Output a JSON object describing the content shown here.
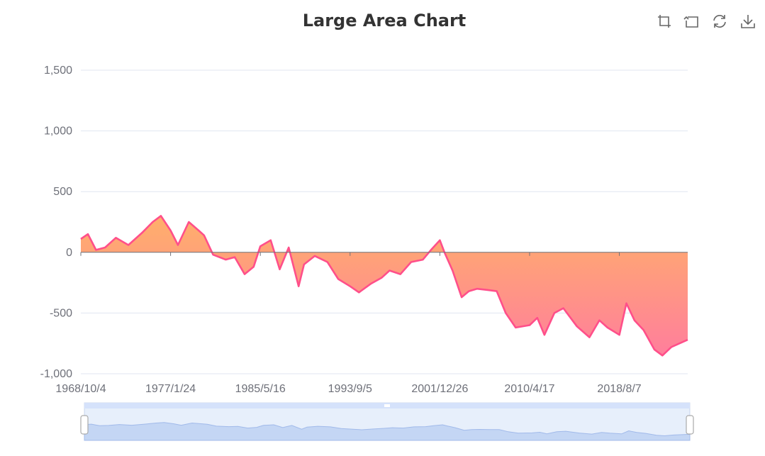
{
  "chart_data": {
    "type": "area",
    "title": "Large Area Chart",
    "xlabel": "",
    "ylabel": "",
    "ylim": [
      -1000,
      1500
    ],
    "yticks": [
      "1,500",
      "1,000",
      "500",
      "0",
      "-500",
      "-1,000"
    ],
    "xticks": [
      "1968/10/4",
      "1977/1/24",
      "1985/5/16",
      "1993/9/5",
      "2001/12/26",
      "2010/4/17",
      "2018/8/7"
    ],
    "xrange": [
      "1968/10/4",
      "2024/12/4"
    ],
    "grid": true,
    "legend": "none",
    "series_color": "#ff4f8a",
    "area_gradient": [
      "#ffb06a",
      "#ff7e9c"
    ],
    "x": [
      "1968/10/4",
      "1969/6/1",
      "1970/3/1",
      "1971/1/1",
      "1972/1/1",
      "1973/3/1",
      "1974/6/1",
      "1975/6/1",
      "1976/3/1",
      "1977/1/24",
      "1977/10/1",
      "1978/10/1",
      "1979/9/1",
      "1980/3/1",
      "1981/1/1",
      "1982/3/1",
      "1983/1/1",
      "1983/12/1",
      "1984/10/1",
      "1985/5/16",
      "1986/5/1",
      "1987/3/1",
      "1988/1/1",
      "1988/12/1",
      "1989/6/1",
      "1990/6/1",
      "1991/8/1",
      "1992/8/1",
      "1993/9/5",
      "1994/7/1",
      "1995/8/1",
      "1996/8/1",
      "1997/5/1",
      "1998/5/1",
      "1999/5/1",
      "2000/6/1",
      "2001/3/1",
      "2001/12/26",
      "2002/6/1",
      "2003/3/1",
      "2004/1/1",
      "2004/9/1",
      "2005/6/1",
      "2006/6/1",
      "2007/4/1",
      "2008/2/1",
      "2009/1/1",
      "2010/4/17",
      "2011/1/1",
      "2011/9/1",
      "2012/8/1",
      "2013/6/1",
      "2014/9/1",
      "2015/11/1",
      "2016/10/1",
      "2017/7/1",
      "2018/8/7",
      "2019/4/1",
      "2020/1/1",
      "2020/11/1",
      "2021/11/1",
      "2022/8/1",
      "2023/6/1",
      "2024/12/4"
    ],
    "y": [
      110,
      150,
      20,
      40,
      120,
      60,
      160,
      250,
      300,
      180,
      60,
      250,
      180,
      140,
      -20,
      -60,
      -40,
      -180,
      -120,
      50,
      100,
      -140,
      40,
      -280,
      -100,
      -30,
      -80,
      -220,
      -280,
      -330,
      -260,
      -210,
      -150,
      -180,
      -80,
      -60,
      20,
      100,
      0,
      -150,
      -370,
      -320,
      -300,
      -310,
      -320,
      -500,
      -620,
      -600,
      -540,
      -680,
      -500,
      -460,
      -610,
      -700,
      -560,
      -620,
      -680,
      -420,
      -560,
      -640,
      -800,
      -850,
      -780,
      -720
    ]
  },
  "toolbox": {
    "icons": [
      "zoom-icon",
      "zoom-reset-icon",
      "restore-icon",
      "save-image-icon"
    ]
  },
  "datazoom": {
    "start": 0,
    "end": 100
  }
}
